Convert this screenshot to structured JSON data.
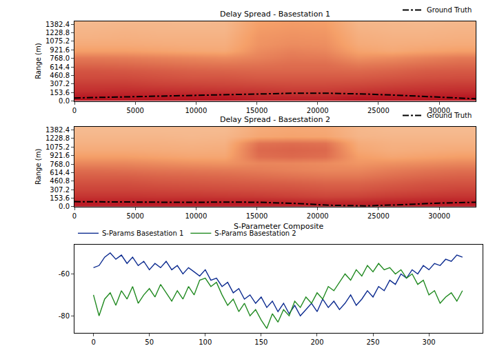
{
  "chart_data": [
    {
      "type": "heatmap",
      "title": "Delay Spread - Basestation 1",
      "y_label": "Range (m)",
      "x": [
        1375,
        4125,
        6875,
        9625,
        12375,
        15125,
        17875,
        20625,
        23375,
        26125,
        28875,
        31625
      ],
      "y": [
        60,
        180,
        300,
        420,
        540,
        660,
        780,
        900,
        1020,
        1140,
        1260,
        1380
      ],
      "z": [
        [
          0.95,
          0.95,
          0.95,
          0.95,
          0.95,
          0.9,
          0.9,
          0.9,
          0.95,
          0.95,
          0.95,
          0.95
        ],
        [
          0.85,
          0.86,
          0.85,
          0.84,
          0.83,
          0.82,
          0.8,
          0.8,
          0.82,
          0.84,
          0.85,
          0.86
        ],
        [
          0.8,
          0.8,
          0.78,
          0.77,
          0.76,
          0.75,
          0.74,
          0.74,
          0.75,
          0.77,
          0.79,
          0.8
        ],
        [
          0.74,
          0.74,
          0.72,
          0.7,
          0.7,
          0.68,
          0.68,
          0.68,
          0.68,
          0.7,
          0.72,
          0.73
        ],
        [
          0.7,
          0.69,
          0.67,
          0.65,
          0.64,
          0.63,
          0.63,
          0.63,
          0.62,
          0.64,
          0.67,
          0.68
        ],
        [
          0.63,
          0.62,
          0.6,
          0.58,
          0.57,
          0.58,
          0.6,
          0.6,
          0.55,
          0.57,
          0.6,
          0.62
        ],
        [
          0.55,
          0.54,
          0.52,
          0.5,
          0.48,
          0.52,
          0.56,
          0.55,
          0.46,
          0.48,
          0.52,
          0.55
        ],
        [
          0.4,
          0.4,
          0.38,
          0.36,
          0.35,
          0.48,
          0.52,
          0.5,
          0.38,
          0.35,
          0.38,
          0.4
        ],
        [
          0.34,
          0.34,
          0.33,
          0.32,
          0.32,
          0.45,
          0.48,
          0.47,
          0.34,
          0.32,
          0.33,
          0.34
        ],
        [
          0.3,
          0.31,
          0.3,
          0.3,
          0.3,
          0.44,
          0.46,
          0.45,
          0.32,
          0.3,
          0.3,
          0.31
        ],
        [
          0.28,
          0.29,
          0.28,
          0.28,
          0.28,
          0.42,
          0.44,
          0.43,
          0.3,
          0.28,
          0.28,
          0.29
        ],
        [
          0.26,
          0.27,
          0.27,
          0.26,
          0.27,
          0.4,
          0.42,
          0.41,
          0.28,
          0.27,
          0.26,
          0.27
        ]
      ],
      "zlim": [
        0,
        1
      ],
      "color": "Magma",
      "xlim": [
        0,
        33000
      ],
      "xticks": [
        0,
        5000,
        10000,
        15000,
        20000,
        25000,
        30000
      ],
      "ylim": [
        0,
        1440
      ],
      "yticks": [
        {
          "value": 0,
          "label": "0.0"
        },
        153.6,
        307.2,
        460.8,
        614.4,
        {
          "value": 768,
          "label": "768.0"
        },
        921.6,
        1075.2,
        1228.8,
        1382.4
      ],
      "series": [
        {
          "name": "Ground Truth",
          "type": "line",
          "color": "#000000",
          "line_style": "dashdot",
          "x": [
            0,
            3000,
            6000,
            9000,
            12000,
            15000,
            18000,
            21000,
            24000,
            27000,
            30000,
            33000
          ],
          "values": [
            55,
            70,
            85,
            100,
            115,
            130,
            140,
            140,
            125,
            100,
            70,
            40
          ]
        }
      ],
      "legend": "above right",
      "grid": false
    },
    {
      "type": "heatmap",
      "title": "Delay Spread - Basestation 2",
      "y_label": "Range (m)",
      "x": [
        1375,
        4125,
        6875,
        9625,
        12375,
        15125,
        17875,
        20625,
        23375,
        26125,
        28875,
        31625
      ],
      "y": [
        60,
        180,
        300,
        420,
        540,
        660,
        780,
        900,
        1020,
        1140,
        1260,
        1380
      ],
      "z": [
        [
          0.93,
          0.93,
          0.93,
          0.93,
          0.93,
          0.93,
          0.92,
          0.9,
          0.9,
          0.92,
          0.93,
          0.93
        ],
        [
          0.83,
          0.83,
          0.82,
          0.82,
          0.81,
          0.8,
          0.78,
          0.76,
          0.77,
          0.8,
          0.82,
          0.83
        ],
        [
          0.77,
          0.77,
          0.76,
          0.75,
          0.74,
          0.73,
          0.72,
          0.7,
          0.7,
          0.73,
          0.75,
          0.77
        ],
        [
          0.72,
          0.72,
          0.7,
          0.69,
          0.68,
          0.67,
          0.66,
          0.64,
          0.64,
          0.67,
          0.7,
          0.71
        ],
        [
          0.66,
          0.66,
          0.64,
          0.63,
          0.62,
          0.6,
          0.58,
          0.56,
          0.56,
          0.6,
          0.63,
          0.65
        ],
        [
          0.6,
          0.59,
          0.57,
          0.56,
          0.55,
          0.54,
          0.52,
          0.5,
          0.5,
          0.54,
          0.57,
          0.59
        ],
        [
          0.5,
          0.5,
          0.48,
          0.46,
          0.45,
          0.5,
          0.5,
          0.48,
          0.44,
          0.46,
          0.48,
          0.5
        ],
        [
          0.4,
          0.4,
          0.38,
          0.36,
          0.36,
          0.6,
          0.62,
          0.6,
          0.4,
          0.36,
          0.38,
          0.4
        ],
        [
          0.34,
          0.34,
          0.33,
          0.32,
          0.33,
          0.62,
          0.64,
          0.62,
          0.36,
          0.32,
          0.33,
          0.34
        ],
        [
          0.3,
          0.3,
          0.3,
          0.29,
          0.3,
          0.58,
          0.6,
          0.58,
          0.33,
          0.3,
          0.3,
          0.3
        ],
        [
          0.27,
          0.27,
          0.27,
          0.26,
          0.27,
          0.36,
          0.38,
          0.37,
          0.28,
          0.27,
          0.27,
          0.27
        ],
        [
          0.25,
          0.25,
          0.25,
          0.25,
          0.25,
          0.34,
          0.36,
          0.35,
          0.27,
          0.25,
          0.25,
          0.25
        ]
      ],
      "zlim": [
        0,
        1
      ],
      "color": "Magma",
      "xlim": [
        0,
        33000
      ],
      "xticks": [
        0,
        5000,
        10000,
        15000,
        20000,
        25000,
        30000
      ],
      "ylim": [
        0,
        1440
      ],
      "yticks": [
        {
          "value": 0,
          "label": "0.0"
        },
        153.6,
        307.2,
        460.8,
        614.4,
        {
          "value": 768,
          "label": "768.0"
        },
        921.6,
        1075.2,
        1228.8,
        1382.4
      ],
      "series": [
        {
          "name": "Ground Truth",
          "type": "line",
          "color": "#000000",
          "line_style": "dashdot",
          "x": [
            0,
            3000,
            6000,
            9000,
            12000,
            15000,
            18000,
            21000,
            24000,
            27000,
            30000,
            33000
          ],
          "values": [
            90,
            85,
            80,
            78,
            82,
            80,
            60,
            25,
            15,
            35,
            65,
            80
          ]
        }
      ],
      "legend": "above right",
      "grid": false
    },
    {
      "type": "line",
      "title": "S-Parameter Composite",
      "x": [
        0,
        5,
        10,
        15,
        20,
        25,
        30,
        35,
        40,
        45,
        50,
        55,
        60,
        65,
        70,
        75,
        80,
        85,
        90,
        95,
        100,
        105,
        110,
        115,
        120,
        125,
        130,
        135,
        140,
        145,
        150,
        155,
        160,
        165,
        170,
        175,
        180,
        185,
        190,
        195,
        200,
        205,
        210,
        215,
        220,
        225,
        230,
        235,
        240,
        245,
        250,
        255,
        260,
        265,
        270,
        275,
        280,
        285,
        290,
        295,
        300,
        305,
        310,
        315,
        320,
        325,
        330
      ],
      "series": [
        {
          "name": "S-Params Basestation 1",
          "color": "#0b2a8f",
          "line_style": "solid",
          "values": [
            -57,
            -56,
            -52,
            -50,
            -53,
            -51,
            -55,
            -52,
            -56,
            -54,
            -58,
            -55,
            -57,
            -54,
            -58,
            -56,
            -60,
            -57,
            -59,
            -61,
            -58,
            -63,
            -62,
            -66,
            -64,
            -69,
            -67,
            -72,
            -70,
            -74,
            -71,
            -76,
            -73,
            -78,
            -74,
            -79,
            -75,
            -80,
            -77,
            -74,
            -78,
            -72,
            -76,
            -73,
            -77,
            -74,
            -70,
            -75,
            -72,
            -68,
            -71,
            -66,
            -68,
            -63,
            -65,
            -60,
            -62,
            -58,
            -60,
            -56,
            -58,
            -55,
            -56,
            -53,
            -54,
            -51,
            -52
          ]
        },
        {
          "name": "S-Params Basestation 2",
          "color": "#218a21",
          "line_style": "solid",
          "values": [
            -70,
            -80,
            -72,
            -69,
            -75,
            -68,
            -72,
            -66,
            -74,
            -70,
            -67,
            -71,
            -65,
            -69,
            -73,
            -68,
            -72,
            -66,
            -70,
            -63,
            -62,
            -66,
            -64,
            -70,
            -75,
            -72,
            -78,
            -74,
            -80,
            -77,
            -82,
            -86,
            -79,
            -83,
            -77,
            -80,
            -73,
            -76,
            -71,
            -74,
            -69,
            -72,
            -66,
            -68,
            -64,
            -60,
            -63,
            -58,
            -61,
            -56,
            -59,
            -55,
            -58,
            -57,
            -60,
            -58,
            -62,
            -60,
            -65,
            -63,
            -70,
            -68,
            -74,
            -71,
            -69,
            -73,
            -68
          ]
        }
      ],
      "xlim": [
        -17,
        348
      ],
      "xticks": [
        0,
        50,
        100,
        150,
        200,
        250,
        300
      ],
      "ylim": [
        -88,
        -46
      ],
      "yticks": [
        -80,
        -60
      ],
      "legend": "above left",
      "grid": false
    }
  ]
}
